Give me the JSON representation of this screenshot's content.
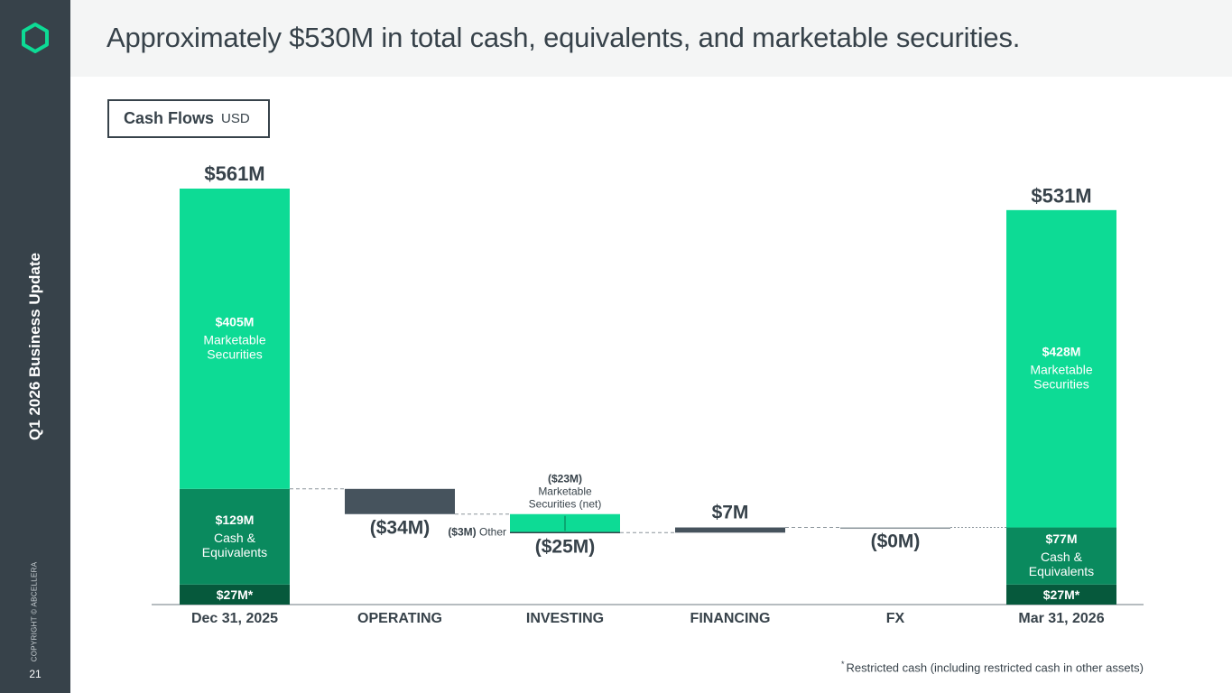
{
  "sidebar": {
    "title": "Q1 2026 Business Update",
    "copyright": "COPYRIGHT © ABCELLERA",
    "page_number": "21"
  },
  "header": {
    "title": "Approximately $530M in total cash, equivalents, and marketable securities."
  },
  "legend_box": {
    "title": "Cash Flows",
    "unit": "USD"
  },
  "footnote": {
    "marker": "*",
    "text": "Restricted cash (including restricted cash in other assets)"
  },
  "colors": {
    "sidebar": "#37424a",
    "marketable_securities": "#0ddb95",
    "cash_equivalents": "#0a8a5e",
    "restricted_cash": "#06593c",
    "negative_flow": "#46535d",
    "positive_flow": "#46535d",
    "investing_flow": "#0ddb95",
    "text": "#37424a",
    "logo": "#0ddb95"
  },
  "chart_data": {
    "type": "bar",
    "subtype": "waterfall",
    "categories": [
      "Dec 31, 2025",
      "OPERATING",
      "INVESTING",
      "FINANCING",
      "FX",
      "Mar 31, 2026"
    ],
    "unit": "USD millions",
    "ylim": [
      0,
      600
    ],
    "grid": false,
    "totals": [
      {
        "category": "Dec 31, 2025",
        "total": 561,
        "total_label": "$561M",
        "segments": [
          {
            "name": "Restricted cash",
            "value": 27,
            "label": "$27M*",
            "color_key": "restricted_cash"
          },
          {
            "name": "Cash & Equivalents",
            "value": 129,
            "label": "$129M",
            "desc": "Cash & Equivalents",
            "color_key": "cash_equivalents"
          },
          {
            "name": "Marketable Securities",
            "value": 405,
            "label": "$405M",
            "desc": "Marketable Securities",
            "color_key": "marketable_securities"
          }
        ]
      },
      {
        "category": "Mar 31, 2026",
        "total": 531,
        "total_label": "$531M",
        "segments": [
          {
            "name": "Restricted cash",
            "value": 27,
            "label": "$27M*",
            "color_key": "restricted_cash"
          },
          {
            "name": "Cash & Equivalents",
            "value": 77,
            "label": "$77M",
            "desc": "Cash & Equivalents",
            "color_key": "cash_equivalents"
          },
          {
            "name": "Marketable Securities",
            "value": 428,
            "label": "$428M",
            "desc": "Marketable Securities",
            "color_key": "marketable_securities"
          }
        ]
      }
    ],
    "flows": [
      {
        "category": "OPERATING",
        "value": -34,
        "label": "($34M)",
        "color_key": "negative_flow"
      },
      {
        "category": "INVESTING",
        "value": -25,
        "label": "($25M)",
        "color_key": "investing_flow",
        "components": [
          {
            "name": "Marketable Securities (net)",
            "value": -23,
            "value_label": "($23M)",
            "desc": "Marketable Securities (net)"
          },
          {
            "name": "Other",
            "value": -3,
            "value_label": "($3M)",
            "desc": "Other"
          }
        ]
      },
      {
        "category": "FINANCING",
        "value": 7,
        "label": "$7M",
        "color_key": "positive_flow"
      },
      {
        "category": "FX",
        "value": 0,
        "label": "($0M)",
        "color_key": "negative_flow"
      }
    ]
  }
}
